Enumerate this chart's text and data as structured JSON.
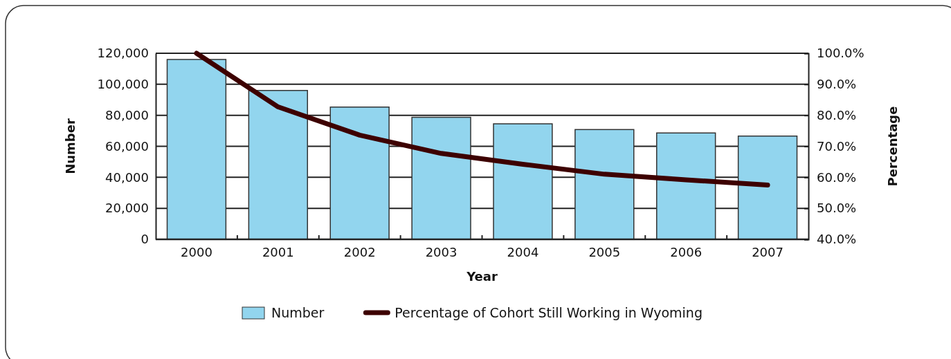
{
  "chart_data": {
    "type": "bar",
    "xlabel": "Year",
    "ylabel": "Number",
    "y2label": "Percentage",
    "categories": [
      "2000",
      "2001",
      "2002",
      "2003",
      "2004",
      "2005",
      "2006",
      "2007"
    ],
    "series": [
      {
        "name": "Number",
        "color": "#92d5ee",
        "values": [
          116000,
          96000,
          85300,
          78700,
          74500,
          70800,
          68600,
          66600
        ]
      },
      {
        "name": "Percentage of Cohort Still Working in Wyoming",
        "type": "line",
        "axis": "y2",
        "color": "#3d0000",
        "values": [
          100,
          82.7,
          73.6,
          67.7,
          64.2,
          61.0,
          59.2,
          57.5
        ]
      }
    ],
    "ylim": [
      0,
      120000
    ],
    "yticks": [
      {
        "value": 0,
        "label": "0"
      },
      {
        "value": 20000,
        "label": "20,000"
      },
      {
        "value": 40000,
        "label": "40,000"
      },
      {
        "value": 60000,
        "label": "60,000"
      },
      {
        "value": 80000,
        "label": "80,000"
      },
      {
        "value": 100000,
        "label": "100,000"
      },
      {
        "value": 120000,
        "label": "120,000"
      }
    ],
    "y2lim": [
      40,
      100
    ],
    "y2ticks": [
      {
        "value": 40,
        "label": "40.0%"
      },
      {
        "value": 50,
        "label": "50.0%"
      },
      {
        "value": 60,
        "label": "60.0%"
      },
      {
        "value": 70,
        "label": "70.0%"
      },
      {
        "value": 80,
        "label": "80.0%"
      },
      {
        "value": 90,
        "label": "90.0%"
      },
      {
        "value": 100,
        "label": "100.0%"
      }
    ],
    "grid": "y",
    "legend": "bottom",
    "marker": "none",
    "line_style": "solid"
  }
}
